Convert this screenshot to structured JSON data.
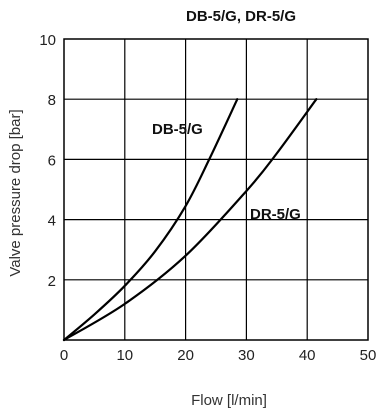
{
  "chart_data": {
    "type": "line",
    "title": "DB-5/G, DR-5/G",
    "xlabel": "Flow [l/min]",
    "ylabel": "Valve pressure drop [bar]",
    "xlim": [
      0,
      50
    ],
    "ylim": [
      0,
      10
    ],
    "xticks": [
      0,
      10,
      20,
      30,
      40,
      50
    ],
    "yticks": [
      2,
      4,
      6,
      8,
      10
    ],
    "grid": true,
    "series": [
      {
        "name": "DB-5/G",
        "points": [
          [
            0,
            0
          ],
          [
            5,
            0.85
          ],
          [
            10,
            1.8
          ],
          [
            15,
            2.95
          ],
          [
            20,
            4.45
          ],
          [
            24,
            6.05
          ],
          [
            28.5,
            8.0
          ]
        ]
      },
      {
        "name": "DR-5/G",
        "points": [
          [
            0,
            0
          ],
          [
            10,
            1.2
          ],
          [
            20,
            2.8
          ],
          [
            30,
            4.95
          ],
          [
            35,
            6.2
          ],
          [
            41.5,
            8.0
          ]
        ]
      }
    ]
  }
}
